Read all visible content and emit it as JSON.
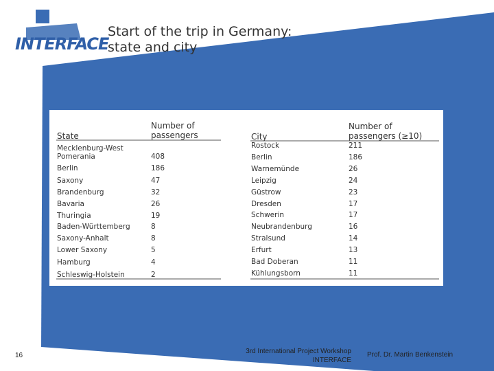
{
  "logo": "INTERFACE",
  "title": [
    "Start of the trip in Germany:",
    "state and city"
  ],
  "table_left": {
    "header": [
      "State",
      "Number of passengers"
    ],
    "rows": [
      [
        "Mecklenburg-West Pomerania",
        408
      ],
      [
        "Berlin",
        186
      ],
      [
        "Saxony",
        47
      ],
      [
        "Brandenburg",
        32
      ],
      [
        "Bavaria",
        26
      ],
      [
        "Thuringia",
        19
      ],
      [
        "Baden-Württemberg",
        8
      ],
      [
        "Saxony-Anhalt",
        8
      ],
      [
        "Lower Saxony",
        5
      ],
      [
        "Hamburg",
        4
      ],
      [
        "Schleswig-Holstein",
        2
      ]
    ]
  },
  "table_right": {
    "header": [
      "City",
      "Number of passengers (≥10)"
    ],
    "rows": [
      [
        "Rostock",
        211
      ],
      [
        "Berlin",
        186
      ],
      [
        "Warnemünde",
        26
      ],
      [
        "Leipzig",
        24
      ],
      [
        "Güstrow",
        23
      ],
      [
        "Dresden",
        17
      ],
      [
        "Schwerin",
        17
      ],
      [
        "Neubrandenburg",
        16
      ],
      [
        "Stralsund",
        14
      ],
      [
        "Erfurt",
        13
      ],
      [
        "Bad Doberan",
        11
      ],
      [
        "Kühlungsborn",
        11
      ]
    ]
  },
  "footer": {
    "page": "16",
    "event": [
      "3rd International Project Workshop",
      "INTERFACE"
    ],
    "author": "Prof. Dr. Martin Benkenstein"
  }
}
